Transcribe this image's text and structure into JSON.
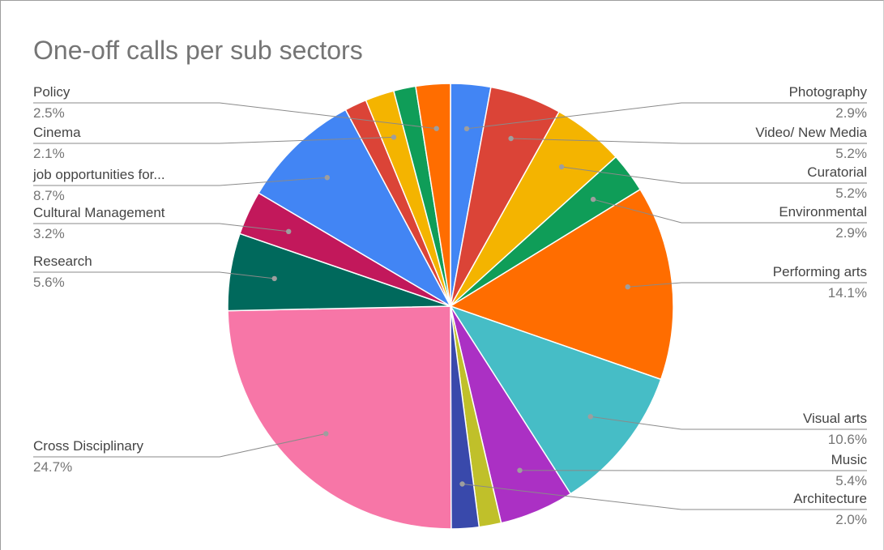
{
  "chart_data": {
    "type": "pie",
    "title": "One-off calls per sub sectors",
    "start_angle_deg": 0,
    "direction": "clockwise",
    "legend": "labeled",
    "slices": [
      {
        "label": "Photography",
        "value": 2.9,
        "value_label": "2.9%",
        "color": "#4285F4"
      },
      {
        "label": "Video/ New Media",
        "value": 5.2,
        "value_label": "5.2%",
        "color": "#DB4437"
      },
      {
        "label": "Curatorial",
        "value": 5.2,
        "value_label": "5.2%",
        "color": "#F4B400"
      },
      {
        "label": "Environmental",
        "value": 2.9,
        "value_label": "2.9%",
        "color": "#0F9D58"
      },
      {
        "label": "Performing arts",
        "value": 14.1,
        "value_label": "14.1%",
        "color": "#FF6D00"
      },
      {
        "label": "Visual arts",
        "value": 10.6,
        "value_label": "10.6%",
        "color": "#46BDC6"
      },
      {
        "label": "Music",
        "value": 5.4,
        "value_label": "5.4%",
        "color": "#AB30C4"
      },
      {
        "label": "",
        "value": 1.6,
        "value_label": "",
        "color": "#C0C02A"
      },
      {
        "label": "Architecture",
        "value": 2.0,
        "value_label": "2.0%",
        "color": "#3949AB"
      },
      {
        "label": "Cross Disciplinary",
        "value": 24.7,
        "value_label": "24.7%",
        "color": "#F776A7"
      },
      {
        "label": "Research",
        "value": 5.6,
        "value_label": "5.6%",
        "color": "#00695C"
      },
      {
        "label": "Cultural Management",
        "value": 3.2,
        "value_label": "3.2%",
        "color": "#C2185B"
      },
      {
        "label": "job opportunities for...",
        "value": 8.7,
        "value_label": "8.7%",
        "color": "#4285F4"
      },
      {
        "label": "",
        "value": 1.6,
        "value_label": "",
        "color": "#DB4437"
      },
      {
        "label": "Cinema",
        "value": 2.1,
        "value_label": "2.1%",
        "color": "#F4B400"
      },
      {
        "label": "",
        "value": 1.6,
        "value_label": "",
        "color": "#0F9D58"
      },
      {
        "label": "Policy",
        "value": 2.5,
        "value_label": "2.5%",
        "color": "#FF6D00"
      }
    ]
  }
}
